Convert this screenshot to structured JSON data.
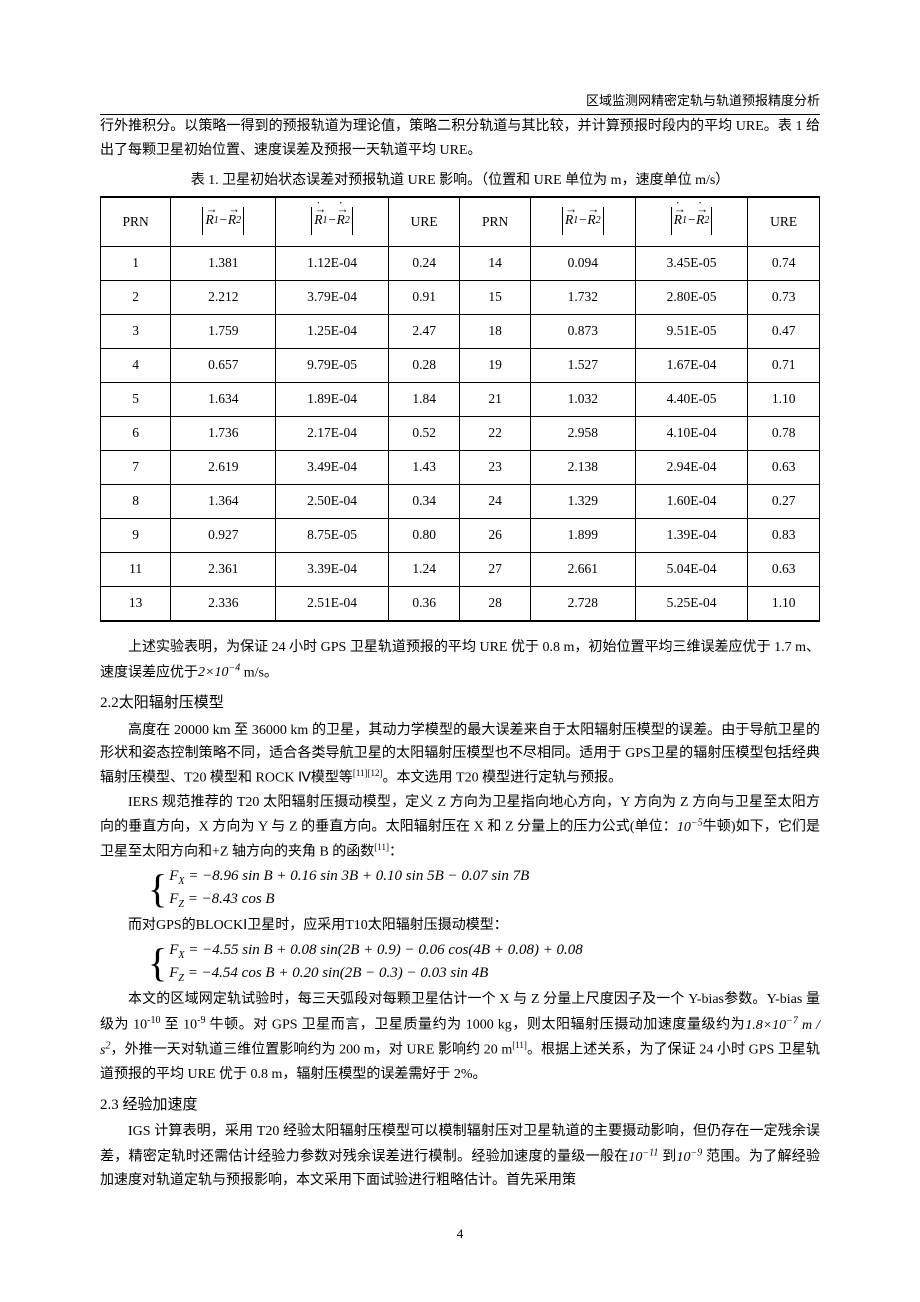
{
  "running_head": "区域监测网精密定轨与轨道预报精度分析",
  "intro_para": "行外推积分。以策略一得到的预报轨道为理论值，策略二积分轨道与其比较，并计算预报时段内的平均 URE。表 1 给出了每颗卫星初始位置、速度误差及预报一天轨道平均 URE。",
  "table1": {
    "caption": "表 1. 卫星初始状态误差对预报轨道 URE 影响。（位置和 URE 单位为 m，速度单位 m/s）",
    "headers": {
      "prn": "PRN",
      "ure": "URE"
    },
    "rows": [
      {
        "prn": "1",
        "r": "1.381",
        "rd": "1.12E-04",
        "u": "0.24",
        "prn2": "14",
        "r2": "0.094",
        "rd2": "3.45E-05",
        "u2": "0.74"
      },
      {
        "prn": "2",
        "r": "2.212",
        "rd": "3.79E-04",
        "u": "0.91",
        "prn2": "15",
        "r2": "1.732",
        "rd2": "2.80E-05",
        "u2": "0.73"
      },
      {
        "prn": "3",
        "r": "1.759",
        "rd": "1.25E-04",
        "u": "2.47",
        "prn2": "18",
        "r2": "0.873",
        "rd2": "9.51E-05",
        "u2": "0.47"
      },
      {
        "prn": "4",
        "r": "0.657",
        "rd": "9.79E-05",
        "u": "0.28",
        "prn2": "19",
        "r2": "1.527",
        "rd2": "1.67E-04",
        "u2": "0.71"
      },
      {
        "prn": "5",
        "r": "1.634",
        "rd": "1.89E-04",
        "u": "1.84",
        "prn2": "21",
        "r2": "1.032",
        "rd2": "4.40E-05",
        "u2": "1.10"
      },
      {
        "prn": "6",
        "r": "1.736",
        "rd": "2.17E-04",
        "u": "0.52",
        "prn2": "22",
        "r2": "2.958",
        "rd2": "4.10E-04",
        "u2": "0.78"
      },
      {
        "prn": "7",
        "r": "2.619",
        "rd": "3.49E-04",
        "u": "1.43",
        "prn2": "23",
        "r2": "2.138",
        "rd2": "2.94E-04",
        "u2": "0.63"
      },
      {
        "prn": "8",
        "r": "1.364",
        "rd": "2.50E-04",
        "u": "0.34",
        "prn2": "24",
        "r2": "1.329",
        "rd2": "1.60E-04",
        "u2": "0.27"
      },
      {
        "prn": "9",
        "r": "0.927",
        "rd": "8.75E-05",
        "u": "0.80",
        "prn2": "26",
        "r2": "1.899",
        "rd2": "1.39E-04",
        "u2": "0.83"
      },
      {
        "prn": "11",
        "r": "2.361",
        "rd": "3.39E-04",
        "u": "1.24",
        "prn2": "27",
        "r2": "2.661",
        "rd2": "5.04E-04",
        "u2": "0.63"
      },
      {
        "prn": "13",
        "r": "2.336",
        "rd": "2.51E-04",
        "u": "0.36",
        "prn2": "28",
        "r2": "2.728",
        "rd2": "5.25E-04",
        "u2": "1.10"
      }
    ]
  },
  "para_after_table_1": "上述实验表明，为保证 24 小时 GPS 卫星轨道预报的平均 URE 优于 0.8 m，初始位置平均三维误差应优于 1.7 m、速度误差应优于",
  "para_after_table_2": " m/s。",
  "sec22_title": "2.2太阳辐射压模型",
  "sec22_p1": "高度在 20000 km 至 36000 km 的卫星，其动力学模型的最大误差来自于太阳辐射压模型的误差。由于导航卫星的形状和姿态控制策略不同，适合各类导航卫星的太阳辐射压模型也不尽相同。适用于 GPS卫星的辐射压模型包括经典辐射压模型、T20 模型和 ROCK Ⅳ模型等",
  "sec22_p1_tail": "。本文选用 T20 模型进行定轨与预报。",
  "sec22_p2": "IERS 规范推荐的 T20 太阳辐射压摄动模型，定义 Z 方向为卫星指向地心方向，Y 方向为 Z 方向与卫星至太阳方向的垂直方向，X 方向为 Y 与 Z 的垂直方向。太阳辐射压在 X 和 Z 分量上的压力公式(单位：",
  "sec22_p2_tail": "牛顿)如下，它们是卫星至太阳方向和+Z 轴方向的夹角 B 的函数",
  "formula1": {
    "fx": "= −8.96 sin B + 0.16 sin 3B + 0.10 sin 5B − 0.07 sin 7B",
    "fz": "= −8.43 cos B"
  },
  "sec22_p3": "而对GPS的BLOCKⅠ卫星时，应采用T10太阳辐射压摄动模型：",
  "formula2": {
    "fx": "= −4.55 sin B + 0.08 sin(2B + 0.9) − 0.06 cos(4B + 0.08) + 0.08",
    "fz": "= −4.54 cos B + 0.20 sin(2B − 0.3) − 0.03 sin 4B"
  },
  "sec22_p4_a": "本文的区域网定轨试验时，每三天弧段对每颗卫星估计一个 X 与 Z 分量上尺度因子及一个 Y-bias参数。Y-bias 量级为 10",
  "sec22_p4_b": " 至 10",
  "sec22_p4_c": " 牛顿。对 GPS 卫星而言，卫星质量约为 1000 kg，则太阳辐射压摄动加速度量级约为",
  "sec22_p4_d": "，外推一天对轨道三维位置影响约为 200 m，对 URE 影响约 20 m",
  "sec22_p4_e": "。根据上述关系，为了保证 24 小时 GPS 卫星轨道预报的平均 URE 优于 0.8 m，辐射压模型的误差需好于 2%。",
  "sec23_title": "2.3 经验加速度",
  "sec23_p1_a": "IGS 计算表明，采用 T20 经验太阳辐射压模型可以模制辐射压对卫星轨道的主要摄动影响，但仍存在一定残余误差，精密定轨时还需估计经验力参数对残余误差进行模制。经验加速度的量级一般在",
  "sec23_p1_b": "到",
  "sec23_p1_c": "范围。为了解经验加速度对轨道定轨与预报影响，本文采用下面试验进行粗略估计。首先采用策",
  "pagenum": "4",
  "exponents": {
    "twoTimesTenNeg4": {
      "base": "2×10",
      "exp": "−4"
    },
    "tenNeg5": {
      "base": "10",
      "exp": "−5"
    },
    "tenNeg10": "-10",
    "tenNeg9": "-9",
    "accel": {
      "val": "1.8×10",
      "exp": "−7",
      "unit": " m / s",
      "unitexp": "2"
    },
    "tenNeg11": {
      "base": "10",
      "exp": "−11"
    },
    "tenNeg9b": {
      "base": "10",
      "exp": "−9"
    }
  },
  "refs": {
    "r1112": "[11][12]",
    "r11": "[11]",
    "colon": "："
  }
}
